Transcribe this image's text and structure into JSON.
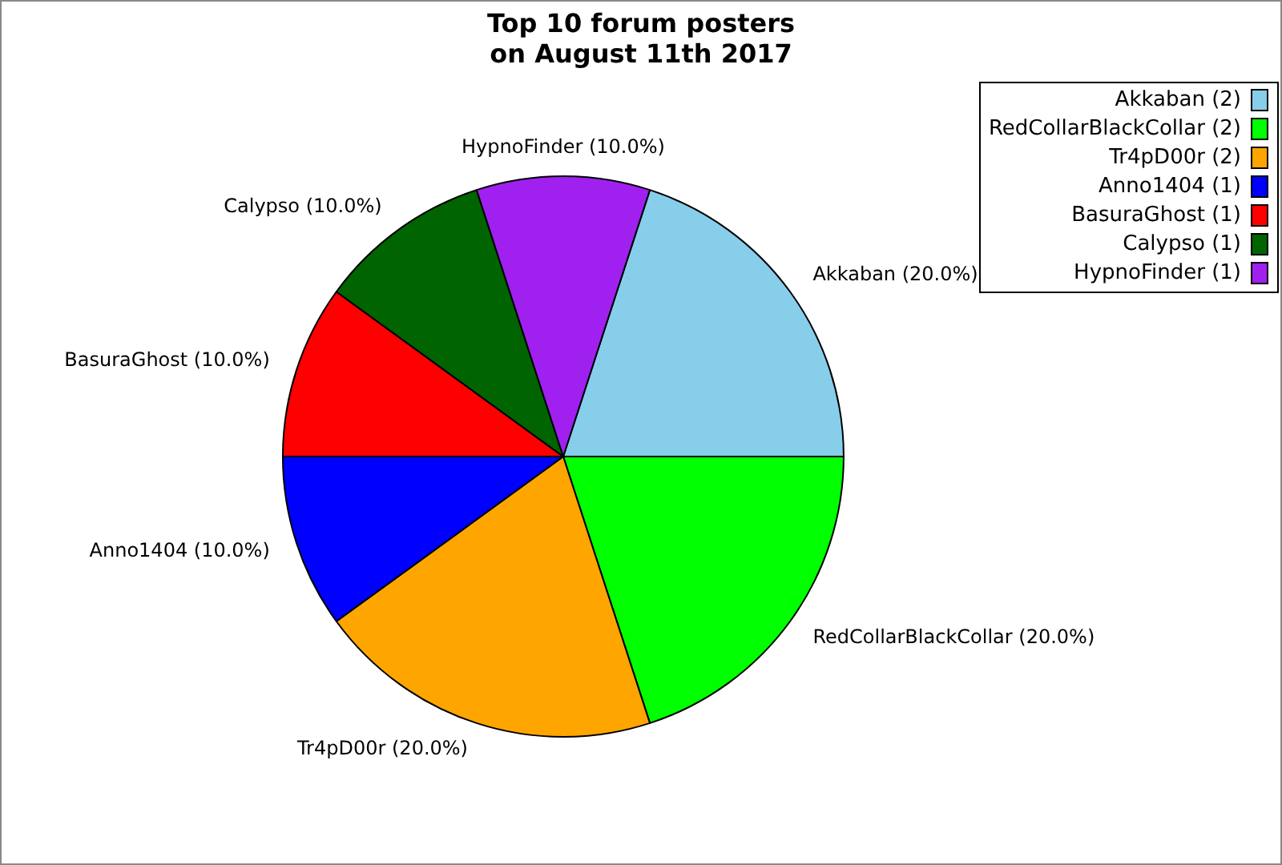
{
  "chart_data": {
    "type": "pie",
    "title": "Top 10 forum posters\non August 11th 2017",
    "categories": [
      "Akkaban (2)",
      "RedCollarBlackCollar (2)",
      "Tr4pD00r (2)",
      "Anno1404 (1)",
      "BasuraGhost (1)",
      "Calypso (1)",
      "HypnoFinder (1)"
    ],
    "values": [
      20,
      20,
      20,
      10,
      10,
      10,
      10
    ],
    "value_labels": [
      "Akkaban (20.0%)",
      "RedCollarBlackCollar (20.0%)",
      "Tr4pD00r (20.0%)",
      "Anno1404 (10.0%)",
      "BasuraGhost (10.0%)",
      "Calypso (10.0%)",
      "HypnoFinder (10.0%)"
    ],
    "colors": [
      "#87ceeb",
      "#00ff00",
      "#ffa500",
      "#0000ff",
      "#ff0000",
      "#006400",
      "#a020f0"
    ],
    "legend": "top right"
  }
}
